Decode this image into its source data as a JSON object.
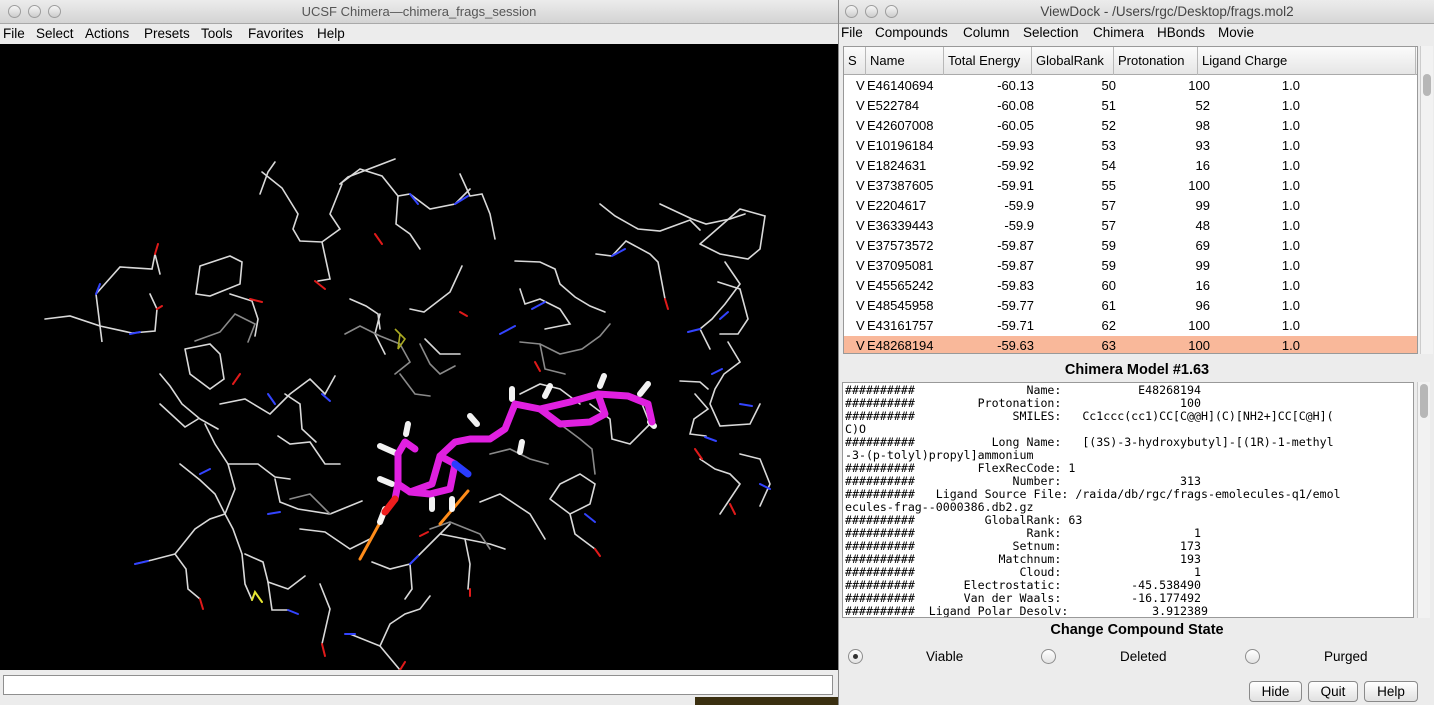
{
  "chimera": {
    "title": "UCSF Chimera—chimera_frags_session",
    "menu": [
      "File",
      "Select",
      "Actions",
      "Presets",
      "Tools",
      "Favorites",
      "Help"
    ],
    "command_line": ""
  },
  "viewdock": {
    "title": "ViewDock - /Users/rgc/Desktop/frags.mol2",
    "menu": [
      "File",
      "Compounds",
      "Column",
      "Selection",
      "Chimera",
      "HBonds",
      "Movie"
    ],
    "columns": [
      "S",
      "Name",
      "Total Energy",
      "GlobalRank",
      "Protonation",
      "Ligand Charge"
    ],
    "rows": [
      {
        "s": "V",
        "name": "E46140694",
        "energy": "-60.13",
        "rank": "50",
        "prot": "100",
        "charge": "1.0"
      },
      {
        "s": "V",
        "name": "E522784",
        "energy": "-60.08",
        "rank": "51",
        "prot": "52",
        "charge": "1.0"
      },
      {
        "s": "V",
        "name": "E42607008",
        "energy": "-60.05",
        "rank": "52",
        "prot": "98",
        "charge": "1.0"
      },
      {
        "s": "V",
        "name": "E10196184",
        "energy": "-59.93",
        "rank": "53",
        "prot": "93",
        "charge": "1.0"
      },
      {
        "s": "V",
        "name": "E1824631",
        "energy": "-59.92",
        "rank": "54",
        "prot": "16",
        "charge": "1.0"
      },
      {
        "s": "V",
        "name": "E37387605",
        "energy": "-59.91",
        "rank": "55",
        "prot": "100",
        "charge": "1.0"
      },
      {
        "s": "V",
        "name": "E2204617",
        "energy": "-59.9",
        "rank": "57",
        "prot": "99",
        "charge": "1.0"
      },
      {
        "s": "V",
        "name": "E36339443",
        "energy": "-59.9",
        "rank": "57",
        "prot": "48",
        "charge": "1.0"
      },
      {
        "s": "V",
        "name": "E37573572",
        "energy": "-59.87",
        "rank": "59",
        "prot": "69",
        "charge": "1.0"
      },
      {
        "s": "V",
        "name": "E37095081",
        "energy": "-59.87",
        "rank": "59",
        "prot": "99",
        "charge": "1.0"
      },
      {
        "s": "V",
        "name": "E45565242",
        "energy": "-59.83",
        "rank": "60",
        "prot": "16",
        "charge": "1.0"
      },
      {
        "s": "V",
        "name": "E48545958",
        "energy": "-59.77",
        "rank": "61",
        "prot": "96",
        "charge": "1.0"
      },
      {
        "s": "V",
        "name": "E43161757",
        "energy": "-59.71",
        "rank": "62",
        "prot": "100",
        "charge": "1.0"
      },
      {
        "s": "V",
        "name": "E48268194",
        "energy": "-59.63",
        "rank": "63",
        "prot": "100",
        "charge": "1.0",
        "selected": true
      }
    ],
    "model_title": "Chimera Model #1.63",
    "info_lines": [
      "##########                Name:           E48268194",
      "##########         Protonation:                 100",
      "##########              SMILES:   Cc1ccc(cc1)CC[C@@H](C)[NH2+]CC[C@H](",
      "C)O",
      "##########           Long Name:   [(3S)-3-hydroxybutyl]-[(1R)-1-methyl",
      "-3-(p-tolyl)propyl]ammonium",
      "##########         FlexRecCode: 1",
      "##########              Number:                 313",
      "##########   Ligand Source File: /raida/db/rgc/frags-emolecules-q1/emol",
      "ecules-frag--0000386.db2.gz",
      "##########          GlobalRank: 63",
      "##########                Rank:                   1",
      "##########              Setnum:                 173",
      "##########            Matchnum:                 193",
      "##########               Cloud:                   1",
      "##########       Electrostatic:          -45.538490",
      "##########       Van der Waals:          -16.177492",
      "##########  Ligand Polar Desolv:            3.912389"
    ],
    "state_title": "Change Compound State",
    "states": [
      "Viable",
      "Deleted",
      "Purged"
    ],
    "selected_state": "Viable",
    "buttons": {
      "hide": "Hide",
      "quit": "Quit",
      "help": "Help"
    }
  },
  "colors": {
    "selection": "#f9b89a",
    "ligand": "#e020e0",
    "nitrogen": "#2a3cff",
    "oxygen": "#e01a1a",
    "hbond": "#ff8c1a"
  }
}
